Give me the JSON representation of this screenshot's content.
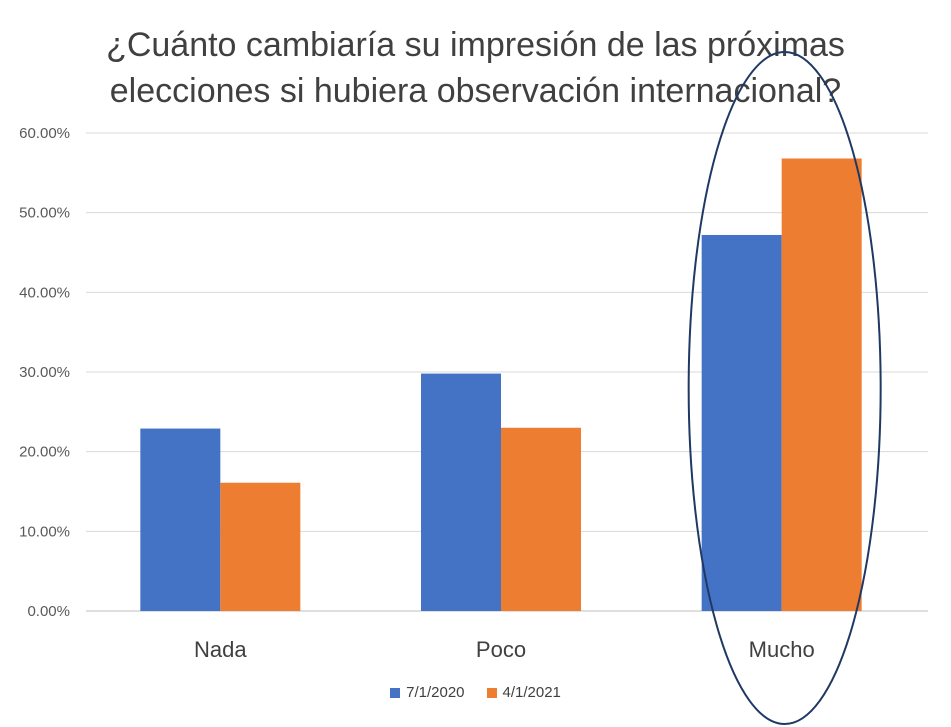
{
  "chart_data": {
    "type": "bar",
    "title_lines": [
      "¿Cuánto cambiaría su impresión de las próximas",
      "elecciones si hubiera observación internacional?"
    ],
    "categories": [
      "Nada",
      "Poco",
      "Mucho"
    ],
    "series": [
      {
        "name": "7/1/2020",
        "color": "#4472C4",
        "values": [
          22.9,
          29.8,
          47.2
        ]
      },
      {
        "name": "4/1/2021",
        "color": "#ED7D31",
        "values": [
          16.1,
          23.0,
          56.8
        ]
      }
    ],
    "yticks": [
      "0.00%",
      "10.00%",
      "20.00%",
      "30.00%",
      "40.00%",
      "50.00%",
      "60.00%"
    ],
    "ylim": [
      0,
      60
    ],
    "grid": true,
    "legend_position": "bottom",
    "highlight": {
      "category": "Mucho",
      "shape": "ellipse",
      "color": "#1F3864"
    }
  }
}
